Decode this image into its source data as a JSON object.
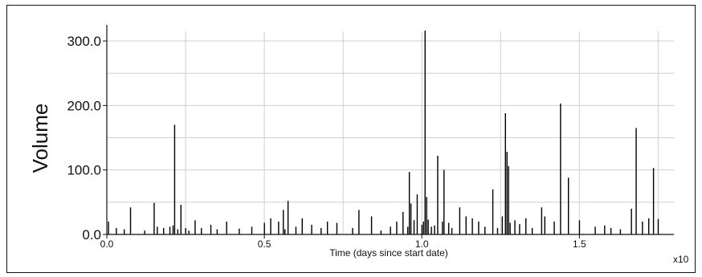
{
  "chart_data": {
    "type": "bar",
    "xlabel": "Time (days since start date)",
    "ylabel": "Volume",
    "x_multiplier_label": "x10",
    "xlim": [
      0.0,
      1.8
    ],
    "ylim": [
      0,
      315
    ],
    "xticks": [
      0.0,
      0.5,
      1.0,
      1.5
    ],
    "xtick_labels": [
      "0.0",
      "0.5",
      "1.0",
      "1.5"
    ],
    "yticks": [
      0,
      100,
      200,
      300
    ],
    "ytick_labels": [
      "0.0",
      "100.0",
      "200.0",
      "300.0"
    ],
    "grid": true,
    "series": [
      {
        "color": "#000000",
        "x": [
          0.005,
          0.03,
          0.055,
          0.075,
          0.12,
          0.15,
          0.16,
          0.18,
          0.2,
          0.21,
          0.215,
          0.225,
          0.235,
          0.25,
          0.26,
          0.28,
          0.3,
          0.33,
          0.35,
          0.38,
          0.42,
          0.46,
          0.5,
          0.52,
          0.545,
          0.56,
          0.565,
          0.575,
          0.6,
          0.62,
          0.65,
          0.68,
          0.7,
          0.73,
          0.78,
          0.8,
          0.84,
          0.87,
          0.9,
          0.92,
          0.94,
          0.955,
          0.96,
          0.965,
          0.975,
          0.985,
          1.0,
          1.005,
          1.01,
          1.015,
          1.02,
          1.03,
          1.04,
          1.05,
          1.065,
          1.07,
          1.085,
          1.095,
          1.12,
          1.14,
          1.16,
          1.18,
          1.2,
          1.225,
          1.24,
          1.255,
          1.265,
          1.27,
          1.275,
          1.28,
          1.295,
          1.31,
          1.33,
          1.35,
          1.38,
          1.39,
          1.42,
          1.44,
          1.465,
          1.5,
          1.55,
          1.58,
          1.6,
          1.63,
          1.665,
          1.68,
          1.7,
          1.72,
          1.735,
          1.75
        ],
        "values": [
          20,
          10,
          8,
          42,
          6,
          49,
          12,
          10,
          12,
          14,
          170,
          8,
          46,
          10,
          6,
          22,
          10,
          15,
          8,
          20,
          9,
          12,
          18,
          25,
          20,
          38,
          8,
          52,
          12,
          25,
          15,
          10,
          20,
          18,
          10,
          38,
          28,
          6,
          12,
          20,
          35,
          12,
          97,
          48,
          22,
          62,
          15,
          20,
          316,
          58,
          23,
          12,
          14,
          122,
          20,
          100,
          18,
          10,
          42,
          28,
          25,
          20,
          12,
          70,
          10,
          28,
          188,
          128,
          106,
          18,
          22,
          16,
          25,
          10,
          42,
          28,
          20,
          203,
          88,
          22,
          12,
          14,
          10,
          8,
          40,
          165,
          20,
          25,
          103,
          24
        ]
      }
    ]
  }
}
